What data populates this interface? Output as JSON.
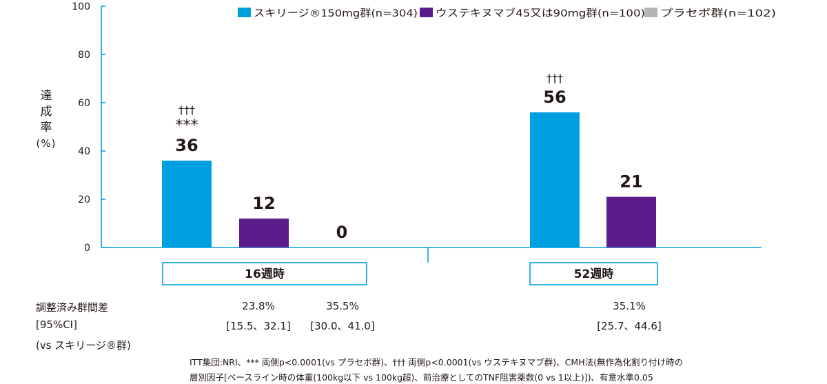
{
  "chart_data": {
    "type": "bar",
    "categories": [
      "16週時",
      "52週時"
    ],
    "series": [
      {
        "name": "スキリージ®150mg群(n=304)",
        "color": "#00a0e0",
        "values": [
          36,
          56
        ]
      },
      {
        "name": "ウステキヌマブ45又は90mg群(n=100)",
        "color": "#5b1d8c",
        "values": [
          12,
          21
        ]
      },
      {
        "name": "プラセボ群(n=102)",
        "color": "#b5b5b6",
        "values": [
          0,
          null
        ]
      }
    ],
    "value_labels": [
      [
        "36",
        "56"
      ],
      [
        "12",
        "21"
      ],
      [
        "0",
        ""
      ]
    ],
    "sig_marks": [
      {
        "series": 0,
        "category": 0,
        "lines": [
          "†††",
          "***"
        ]
      },
      {
        "series": 0,
        "category": 1,
        "lines": [
          "†††"
        ]
      }
    ],
    "ylim": [
      0,
      100
    ],
    "yticks": [
      0,
      20,
      40,
      60,
      80,
      100
    ],
    "ylabel": {
      "chars": [
        "達",
        "成",
        "率"
      ],
      "unit": "(%)"
    },
    "legend_position": "top-right",
    "grid": false
  },
  "diff": {
    "label_lines": [
      "調整済み群間差",
      "[95%CI]",
      "(vs スキリージ®群)"
    ],
    "values": [
      {
        "pct": "23.8%",
        "ci": "[15.5、32.1]"
      },
      {
        "pct": "35.5%",
        "ci": "[30.0、41.0]"
      },
      {
        "pct": "35.1%",
        "ci": "[25.7、44.6]"
      }
    ]
  },
  "footnote": [
    "ITT集団:NRI、*** 両側p<0.0001(vs プラセボ群)、††† 両側p<0.0001(vs ウステキヌマブ群)、CMH法(無作為化割り付け時の",
    "層別因子[ベースライン時の体重(100kg以下 vs 100kg超)、前治療としてのTNF阻害薬数(0 vs 1以上)])、有意水準0.05"
  ]
}
